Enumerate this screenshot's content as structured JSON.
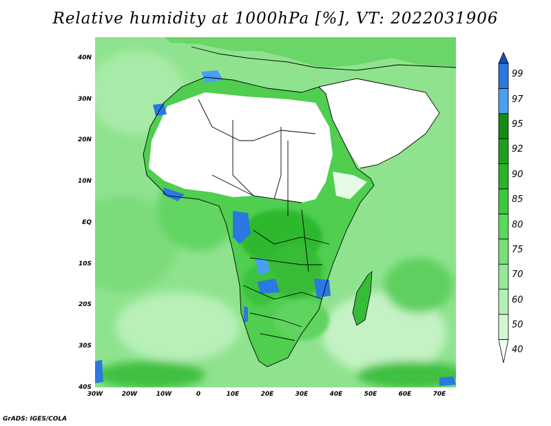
{
  "title": "Relative humidity at 1000hPa [%], VT: 2022031906",
  "credit": "GrADS: IGES/COLA",
  "map": {
    "variable": "Relative humidity at 1000hPa",
    "units": "%",
    "valid_time": "2022031906",
    "lon_range": [
      -30,
      75
    ],
    "lat_range": [
      -40,
      45
    ],
    "lat_labels": [
      "40N",
      "30N",
      "20N",
      "10N",
      "EQ",
      "10S",
      "20S",
      "30S",
      "40S"
    ],
    "lon_labels": [
      "30W",
      "20W",
      "10W",
      "0",
      "10E",
      "20E",
      "30E",
      "40E",
      "50E",
      "60E",
      "70E"
    ],
    "colorbar": {
      "levels": [
        "40",
        "50",
        "60",
        "70",
        "75",
        "80",
        "85",
        "90",
        "92",
        "95",
        "97",
        "99"
      ],
      "colors": [
        "#f0fff0",
        "#d2f8d2",
        "#b4f0b4",
        "#96e896",
        "#78e078",
        "#5ad85a",
        "#3cc83c",
        "#28b428",
        "#1ea01e",
        "#148c14",
        "#4aa0f0",
        "#2a78e0",
        "#1450b4"
      ]
    }
  }
}
